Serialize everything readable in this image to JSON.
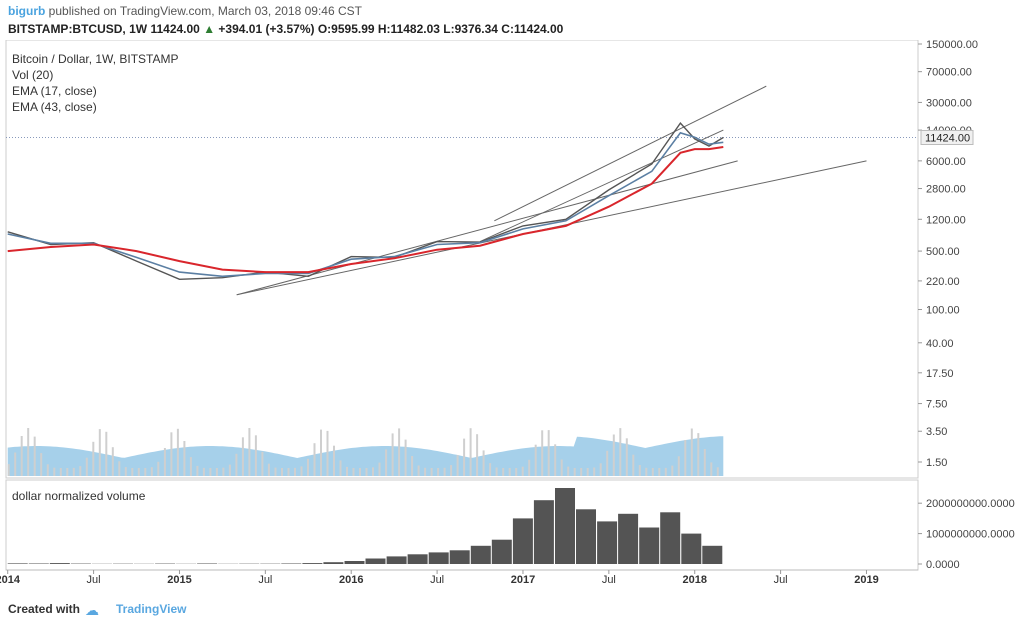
{
  "header": {
    "user": "bigurb",
    "published": "published on TradingView.com, March 03, 2018 09:46 CST",
    "symbol": "BITSTAMP:BTCUSD, 1W",
    "close": "11424.00",
    "change_arrow": "▲",
    "change": "+394.01 (+3.57%)",
    "ohlc": "O:9595.99 H:11482.03 L:9376.34 C:11424.00"
  },
  "legend": {
    "title": "Bitcoin / Dollar, 1W, BITSTAMP",
    "vol": "Vol (20)",
    "ema_fast": "EMA (17, close)",
    "ema_slow": "EMA (43, close)"
  },
  "sub_panel": {
    "title": "dollar normalized volume"
  },
  "footer": {
    "created": "Created with",
    "brand": "TradingView",
    "cloud_icon": "☁"
  },
  "colors": {
    "price": "#555555",
    "ema_fast": "#5b7fa3",
    "ema_slow": "#d9262c",
    "volume_bar": "#cfcfcf",
    "volume_ma": "#9ccbe8",
    "dollar_volume": "#545454",
    "trend": "#666666",
    "last_price_bg": "#f0f0f0"
  },
  "chart_data": [
    {
      "type": "line",
      "title": "Bitcoin / Dollar, 1W, BITSTAMP",
      "x": [
        "2014-01",
        "2014-04",
        "2014-07",
        "2014-10",
        "2015-01",
        "2015-04",
        "2015-07",
        "2015-10",
        "2016-01",
        "2016-04",
        "2016-07",
        "2016-10",
        "2017-01",
        "2017-04",
        "2017-07",
        "2017-10",
        "2017-12",
        "2018-01",
        "2018-02",
        "2018-03"
      ],
      "series": [
        {
          "values": [
            850,
            600,
            630,
            380,
            230,
            240,
            280,
            250,
            430,
            420,
            650,
            640,
            1000,
            1200,
            2700,
            5500,
            17000,
            11000,
            9000,
            11424
          ]
        },
        {
          "name": "EMA (17, close)",
          "values": [
            800,
            620,
            620,
            420,
            280,
            250,
            270,
            270,
            400,
            430,
            600,
            630,
            920,
            1150,
            2300,
            4500,
            13000,
            11500,
            9500,
            10000
          ]
        },
        {
          "name": "EMA (43, close)",
          "values": [
            500,
            560,
            600,
            500,
            380,
            300,
            280,
            280,
            350,
            410,
            520,
            580,
            800,
            1000,
            1700,
            3200,
            7500,
            8300,
            8300,
            8800
          ]
        }
      ],
      "y_scale": "log",
      "y_ticks": [
        "150000.00",
        "70000.00",
        "30000.00",
        "14000.00",
        "6000.00",
        "2800.00",
        "1200.00",
        "500.00",
        "220.00",
        "100.00",
        "40.00",
        "17.50",
        "7.50",
        "3.50",
        "1.50"
      ],
      "last_price_label": "11424.00",
      "x_ticks": [
        "2014",
        "Jul",
        "2015",
        "Jul",
        "2016",
        "Jul",
        "2017",
        "Jul",
        "2018",
        "Jul",
        "2019"
      ],
      "trend_lines": [
        {
          "from": [
            "2015-05",
            150
          ],
          "to": [
            "2018-04",
            6000
          ]
        },
        {
          "from": [
            "2016-11",
            1150
          ],
          "to": [
            "2018-06",
            47000
          ]
        },
        {
          "from": [
            "2016-10",
            650
          ],
          "to": [
            "2018-03",
            14000
          ]
        },
        {
          "from": [
            "2015-05",
            150
          ],
          "to": [
            "2019-01",
            6000
          ]
        }
      ],
      "legend_position": "top-left",
      "grid": false
    },
    {
      "type": "bar",
      "title": "dollar normalized volume",
      "x_range": [
        "2014-01",
        "2018-03"
      ],
      "y_ticks": [
        "2000000000.0000",
        "1000000000.0000",
        "0.0000"
      ],
      "ylim": [
        0,
        2500000000
      ],
      "values": [
        20000000,
        15000000,
        30000000,
        12000000,
        8000000,
        10000000,
        6000000,
        12000000,
        5000000,
        15000000,
        8000000,
        10000000,
        10000000,
        15000000,
        30000000,
        60000000,
        100000000,
        180000000,
        250000000,
        320000000,
        380000000,
        450000000,
        600000000,
        800000000,
        1500000000,
        2100000000,
        2500000000,
        1800000000,
        1400000000,
        1650000000,
        1200000000,
        1700000000,
        1000000000,
        600000000
      ]
    }
  ]
}
